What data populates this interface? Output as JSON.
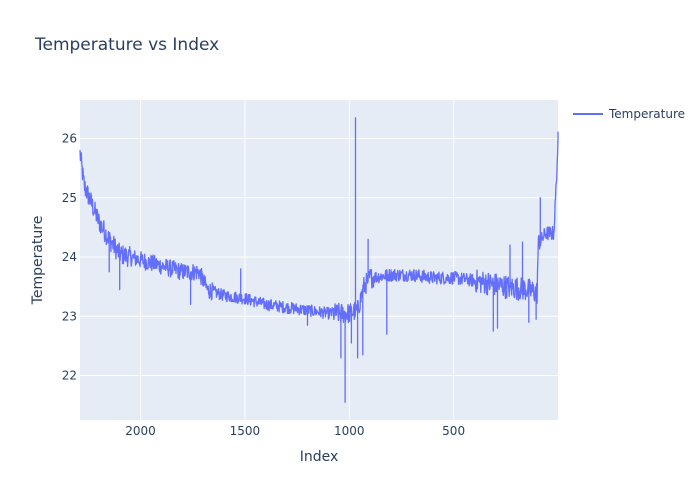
{
  "chart_data": {
    "type": "line",
    "title": "Temperature vs Index",
    "xlabel": "Index",
    "ylabel": "Temperature",
    "x_reversed": true,
    "xlim": [
      2290,
      0
    ],
    "ylim": [
      21.25,
      26.65
    ],
    "x_ticks": [
      2000,
      1500,
      1000,
      500
    ],
    "x_tick_labels": [
      "2000",
      "1500",
      "1000",
      "500"
    ],
    "y_ticks": [
      22,
      23,
      24,
      25,
      26
    ],
    "y_tick_labels": [
      "22",
      "23",
      "24",
      "25",
      "26"
    ],
    "grid": true,
    "legend_position": "top-right",
    "colors": {
      "series": "#636efa",
      "plot_bg": "#e5ecf6",
      "grid": "#ffffff",
      "text": "#2a3f5f"
    },
    "series": [
      {
        "name": "Temperature",
        "trend": [
          [
            2290,
            25.75
          ],
          [
            2270,
            25.2
          ],
          [
            2240,
            24.95
          ],
          [
            2200,
            24.6
          ],
          [
            2150,
            24.3
          ],
          [
            2100,
            24.05
          ],
          [
            2000,
            23.95
          ],
          [
            1900,
            23.85
          ],
          [
            1800,
            23.75
          ],
          [
            1720,
            23.75
          ],
          [
            1680,
            23.45
          ],
          [
            1600,
            23.35
          ],
          [
            1500,
            23.3
          ],
          [
            1400,
            23.2
          ],
          [
            1300,
            23.15
          ],
          [
            1200,
            23.1
          ],
          [
            1100,
            23.05
          ],
          [
            1000,
            23.05
          ],
          [
            960,
            23.1
          ],
          [
            930,
            23.5
          ],
          [
            900,
            23.65
          ],
          [
            800,
            23.7
          ],
          [
            700,
            23.7
          ],
          [
            600,
            23.65
          ],
          [
            500,
            23.65
          ],
          [
            400,
            23.6
          ],
          [
            320,
            23.55
          ],
          [
            250,
            23.5
          ],
          [
            150,
            23.45
          ],
          [
            100,
            23.4
          ],
          [
            95,
            24.2
          ],
          [
            60,
            24.4
          ],
          [
            20,
            24.4
          ],
          [
            5,
            25.5
          ],
          [
            0,
            26.0
          ]
        ],
        "spikes": [
          [
            2150,
            23.75
          ],
          [
            2100,
            23.45
          ],
          [
            1760,
            23.2
          ],
          [
            1520,
            23.8
          ],
          [
            1200,
            22.85
          ],
          [
            1040,
            22.3
          ],
          [
            1020,
            21.55
          ],
          [
            990,
            22.55
          ],
          [
            970,
            26.35
          ],
          [
            960,
            22.3
          ],
          [
            935,
            22.35
          ],
          [
            910,
            24.3
          ],
          [
            820,
            22.7
          ],
          [
            310,
            22.75
          ],
          [
            290,
            22.8
          ],
          [
            230,
            24.2
          ],
          [
            170,
            24.25
          ],
          [
            140,
            22.9
          ],
          [
            105,
            22.95
          ],
          [
            85,
            25.0
          ],
          [
            0,
            26.0
          ]
        ]
      }
    ]
  }
}
